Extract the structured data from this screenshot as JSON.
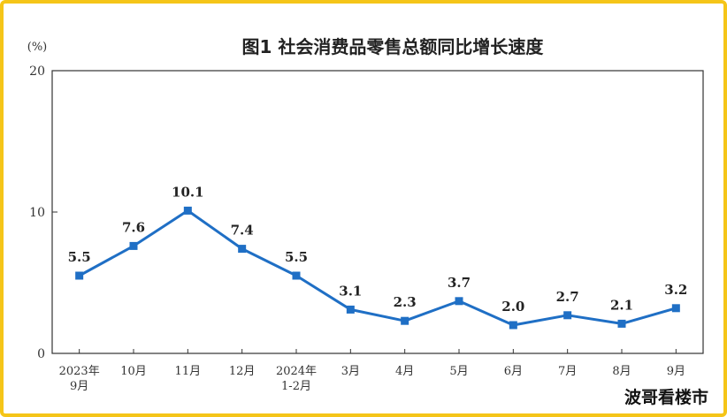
{
  "chart_data": {
    "type": "line",
    "title": "图1  社会消费品零售总额同比增长速度",
    "unit": "(%)",
    "ylim": [
      0,
      20
    ],
    "yticks": [
      "0",
      "10",
      "20"
    ],
    "grid": false,
    "categories": [
      [
        "2023年",
        "9月"
      ],
      [
        "10月"
      ],
      [
        "11月"
      ],
      [
        "12月"
      ],
      [
        "2024年",
        "1-2月"
      ],
      [
        "3月"
      ],
      [
        "4月"
      ],
      [
        "5月"
      ],
      [
        "6月"
      ],
      [
        "7月"
      ],
      [
        "8月"
      ],
      [
        "9月"
      ]
    ],
    "values": [
      5.5,
      7.6,
      10.1,
      7.4,
      5.5,
      3.1,
      2.3,
      3.7,
      2.0,
      2.7,
      2.1,
      3.2
    ],
    "labels": [
      "5.5",
      "7.6",
      "10.1",
      "7.4",
      "5.5",
      "3.1",
      "2.3",
      "3.7",
      "2.0",
      "2.7",
      "2.1",
      "3.2"
    ],
    "color": "#1f6fc5"
  },
  "watermark": "波哥看楼市"
}
